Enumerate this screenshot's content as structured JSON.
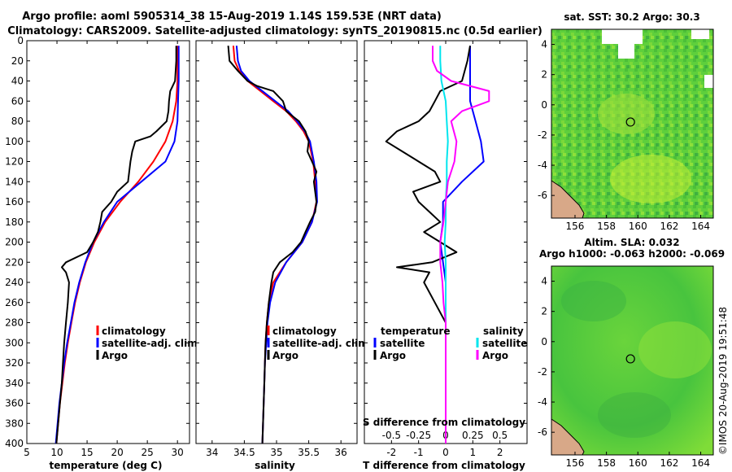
{
  "header": {
    "title_line1": "Argo profile: aoml 5905314_38 15-Aug-2019 1.14S 159.53E (NRT data)",
    "title_line2": "Climatology: CARS2009. Satellite-adjusted climatology: synTS_20190815.nc (0.5d earlier)"
  },
  "colors": {
    "climatology": "#ff0000",
    "satellite": "#0000ff",
    "argo": "#000000",
    "sal_satellite": "#00e5ee",
    "sal_argo": "#ff00ff"
  },
  "chart_data": [
    {
      "type": "line",
      "id": "temperature",
      "xlabel": "temperature (deg C)",
      "xlim": [
        5,
        32
      ],
      "ylim": [
        0,
        400
      ],
      "xticks": [
        "5",
        "10",
        "15",
        "20",
        "25",
        "30"
      ],
      "yticks": [
        "0",
        "20",
        "40",
        "60",
        "80",
        "100",
        "120",
        "140",
        "160",
        "180",
        "200",
        "220",
        "240",
        "260",
        "280",
        "300",
        "320",
        "340",
        "360",
        "380",
        "400"
      ],
      "legend": [
        "climatology",
        "satellite-adj. clim.",
        "Argo"
      ],
      "series": [
        {
          "name": "climatology",
          "depth": [
            5,
            20,
            40,
            60,
            80,
            100,
            120,
            140,
            160,
            180,
            200,
            220,
            240,
            260,
            280,
            300,
            320,
            340,
            360,
            380,
            400
          ],
          "values": [
            30.0,
            30.0,
            30.0,
            29.8,
            29.2,
            28.0,
            26.0,
            23.5,
            20.5,
            18.0,
            16.2,
            14.8,
            13.8,
            13.0,
            12.4,
            11.8,
            11.3,
            10.9,
            10.5,
            10.2,
            9.9
          ]
        },
        {
          "name": "satellite-adj. clim.",
          "depth": [
            5,
            20,
            40,
            60,
            80,
            100,
            120,
            140,
            160,
            180,
            200,
            220,
            240,
            260,
            280,
            300,
            320,
            340,
            360,
            380,
            400
          ],
          "values": [
            30.2,
            30.2,
            30.2,
            30.1,
            30.0,
            29.5,
            28.0,
            24.0,
            20.0,
            17.8,
            16.0,
            14.7,
            13.7,
            12.9,
            12.3,
            11.7,
            11.2,
            10.8,
            10.4,
            10.1,
            9.8
          ]
        },
        {
          "name": "Argo",
          "depth": [
            5,
            20,
            40,
            45,
            50,
            60,
            70,
            80,
            90,
            95,
            100,
            110,
            120,
            130,
            140,
            150,
            160,
            170,
            180,
            190,
            200,
            210,
            220,
            225,
            230,
            240,
            260,
            280,
            300,
            320,
            340,
            360,
            380,
            400
          ],
          "values": [
            29.8,
            29.8,
            29.6,
            29.2,
            28.8,
            28.6,
            28.5,
            28.2,
            26.5,
            25.5,
            23.0,
            22.5,
            22.2,
            22.0,
            21.8,
            20.0,
            19.0,
            17.5,
            17.2,
            16.8,
            16.0,
            15.0,
            11.5,
            10.8,
            11.5,
            12.0,
            11.8,
            11.5,
            11.2,
            11.0,
            10.8,
            10.5,
            10.2,
            9.9
          ]
        }
      ]
    },
    {
      "type": "line",
      "id": "salinity",
      "xlabel": "salinity",
      "xlim": [
        33.75,
        36.25
      ],
      "ylim": [
        0,
        400
      ],
      "xticks": [
        "34",
        "34.5",
        "35",
        "35.5",
        "36"
      ],
      "legend": [
        "climatology",
        "satellite-adj. clim.",
        "Argo"
      ],
      "series": [
        {
          "name": "climatology",
          "depth": [
            5,
            20,
            30,
            40,
            50,
            60,
            70,
            80,
            90,
            100,
            120,
            140,
            160,
            180,
            200,
            220,
            240,
            260,
            280,
            300,
            320,
            340,
            360,
            380,
            400
          ],
          "values": [
            34.33,
            34.35,
            34.42,
            34.55,
            34.75,
            34.95,
            35.15,
            35.3,
            35.42,
            35.5,
            35.57,
            35.6,
            35.62,
            35.55,
            35.4,
            35.15,
            34.95,
            34.88,
            34.85,
            34.83,
            34.82,
            34.81,
            34.8,
            34.79,
            34.78
          ]
        },
        {
          "name": "satellite-adj. clim.",
          "depth": [
            5,
            20,
            30,
            40,
            50,
            60,
            70,
            80,
            90,
            100,
            120,
            140,
            160,
            180,
            200,
            220,
            240,
            260,
            280,
            300,
            320,
            340,
            360,
            380,
            400
          ],
          "values": [
            34.38,
            34.4,
            34.45,
            34.58,
            34.78,
            34.98,
            35.18,
            35.32,
            35.44,
            35.52,
            35.58,
            35.62,
            35.63,
            35.55,
            35.4,
            35.15,
            34.98,
            34.9,
            34.86,
            34.84,
            34.82,
            34.81,
            34.8,
            34.79,
            34.78
          ]
        },
        {
          "name": "Argo",
          "depth": [
            5,
            20,
            30,
            40,
            45,
            50,
            60,
            70,
            80,
            90,
            100,
            110,
            120,
            130,
            140,
            150,
            160,
            170,
            180,
            190,
            200,
            210,
            220,
            230,
            240,
            260,
            280,
            300,
            320,
            340,
            360,
            380,
            400
          ],
          "values": [
            34.25,
            34.27,
            34.4,
            34.55,
            34.7,
            34.95,
            35.1,
            35.15,
            35.35,
            35.45,
            35.5,
            35.48,
            35.55,
            35.62,
            35.58,
            35.6,
            35.62,
            35.6,
            35.52,
            35.45,
            35.38,
            35.25,
            35.05,
            34.95,
            34.92,
            34.88,
            34.85,
            34.83,
            34.82,
            34.81,
            34.8,
            34.79,
            34.78
          ]
        }
      ]
    },
    {
      "type": "line",
      "id": "differences",
      "xlabel": "T difference from climatology",
      "xlabel_top": "S difference from climatology",
      "xlim": [
        -3,
        3
      ],
      "ylim": [
        0,
        400
      ],
      "xticks": [
        "-2",
        "-1",
        "0",
        "1",
        "2"
      ],
      "xticks_top": [
        "-0.5",
        "-0.25",
        "0",
        "0.25",
        "0.5"
      ],
      "legend_left_title": "temperature",
      "legend_right_title": "salinity",
      "legend": [
        "satellite",
        "Argo",
        "satellite",
        "Argo"
      ],
      "series": [
        {
          "name": "T satellite",
          "depth": [
            5,
            20,
            40,
            60,
            80,
            100,
            120,
            140,
            160,
            180,
            200,
            220,
            240,
            260,
            280,
            300,
            320,
            340,
            360,
            380,
            400
          ],
          "values": [
            0.9,
            0.9,
            0.9,
            0.9,
            1.1,
            1.3,
            1.4,
            0.6,
            -0.1,
            -0.1,
            -0.2,
            -0.1,
            0.0,
            0.0,
            0.0,
            0.0,
            0.0,
            0.0,
            0.0,
            0.0,
            0.0
          ]
        },
        {
          "name": "T Argo",
          "depth": [
            5,
            20,
            40,
            50,
            60,
            70,
            80,
            90,
            100,
            110,
            120,
            130,
            140,
            150,
            160,
            170,
            180,
            190,
            200,
            210,
            220,
            225,
            230,
            240,
            260,
            280,
            300,
            320,
            340,
            360,
            380,
            400
          ],
          "values": [
            0.9,
            0.8,
            0.6,
            -0.2,
            -0.4,
            -0.6,
            -1.0,
            -1.8,
            -2.2,
            -1.6,
            -1.0,
            -0.4,
            -0.2,
            -1.2,
            -1.0,
            -0.6,
            -0.2,
            -0.8,
            -0.2,
            0.4,
            -0.5,
            -1.8,
            -0.6,
            -0.8,
            -0.4,
            0.0,
            0.0,
            0.0,
            0.0,
            0.0,
            0.0,
            0.0
          ]
        },
        {
          "name": "S satellite",
          "depth": [
            5,
            20,
            40,
            60,
            80,
            100,
            120,
            140,
            160,
            180,
            200,
            220,
            240,
            260,
            280,
            300,
            320,
            340,
            360,
            380,
            400
          ],
          "values": [
            -0.05,
            -0.05,
            -0.04,
            0.0,
            0.01,
            0.02,
            0.01,
            0.01,
            0.0,
            0.0,
            -0.01,
            0.0,
            0.0,
            0.0,
            0.0,
            0.0,
            0.0,
            0.0,
            0.0,
            0.0,
            0.0
          ]
        },
        {
          "name": "S Argo",
          "depth": [
            5,
            20,
            30,
            40,
            50,
            60,
            70,
            80,
            100,
            120,
            140,
            160,
            180,
            200,
            220,
            240,
            260,
            280,
            300,
            320,
            340,
            360,
            380,
            400
          ],
          "values": [
            -0.12,
            -0.12,
            -0.08,
            0.05,
            0.4,
            0.4,
            0.15,
            0.05,
            0.1,
            0.08,
            0.02,
            0.0,
            -0.02,
            -0.05,
            -0.05,
            -0.03,
            -0.02,
            0.0,
            0.0,
            0.0,
            0.0,
            0.0,
            0.0,
            0.0
          ]
        }
      ]
    },
    {
      "type": "heatmap",
      "id": "sst_map",
      "title": "sat. SST: 30.2 Argo: 30.3",
      "xlim": [
        154.5,
        164.8
      ],
      "ylim": [
        -7.5,
        5
      ],
      "xticks": [
        "156",
        "158",
        "160",
        "162",
        "164"
      ],
      "yticks": [
        "4",
        "2",
        "0",
        "-2",
        "-4",
        "-6"
      ],
      "marker": {
        "lon": 159.53,
        "lat": -1.14
      }
    },
    {
      "type": "heatmap",
      "id": "sla_map",
      "title_line1": "Altim. SLA: 0.032",
      "title_line2": "Argo h1000: -0.063 h2000: -0.069",
      "xlim": [
        154.5,
        164.8
      ],
      "ylim": [
        -7.5,
        5
      ],
      "xticks": [
        "156",
        "158",
        "160",
        "162",
        "164"
      ],
      "yticks": [
        "4",
        "2",
        "0",
        "-2",
        "-4",
        "-6"
      ],
      "marker": {
        "lon": 159.53,
        "lat": -1.14
      }
    }
  ],
  "footer": {
    "credit": "©IMOS 20-Aug-2019 19:51:48"
  }
}
